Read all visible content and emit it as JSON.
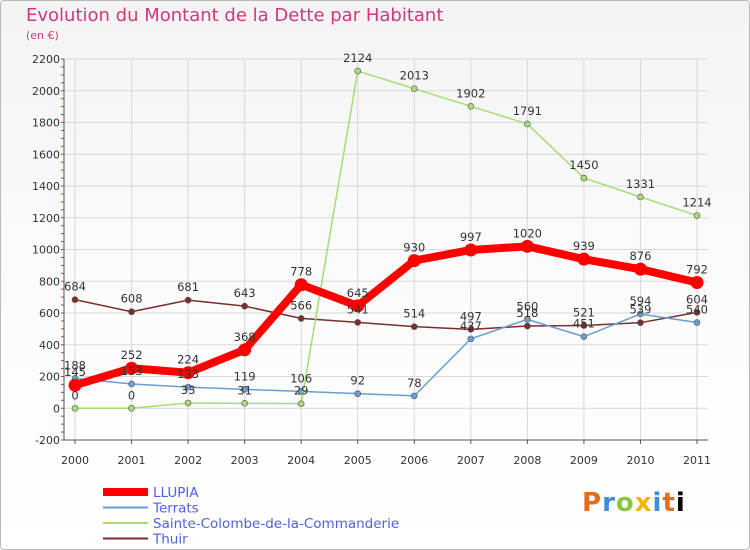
{
  "title": "Evolution du Montant de la Dette par Habitant",
  "subtitle": "(en €)",
  "logo_text": "Proxiti",
  "chart_data": {
    "type": "line",
    "title": "Evolution du Montant de la Dette par Habitant",
    "subtitle": "(en €)",
    "xlabel": "",
    "ylabel": "",
    "x": [
      2000,
      2001,
      2002,
      2003,
      2004,
      2005,
      2006,
      2007,
      2008,
      2009,
      2010,
      2011
    ],
    "ylim": [
      -200,
      2200
    ],
    "yticks": [
      -200,
      0,
      200,
      400,
      600,
      800,
      1000,
      1200,
      1400,
      1600,
      1800,
      2000,
      2200
    ],
    "grid": true,
    "legend_position": "bottom-left",
    "series": [
      {
        "name": "Thuir",
        "color": "#7a2e2e",
        "width": 1.5,
        "values": [
          684,
          608,
          681,
          643,
          566,
          541,
          514,
          497,
          518,
          521,
          539,
          604
        ],
        "labels": [
          "684",
          "608",
          "681",
          "643",
          "566",
          "541",
          "514",
          "497",
          "518",
          "521",
          "539",
          "604"
        ]
      },
      {
        "name": "Terrats",
        "color": "#6a9fce",
        "width": 1.5,
        "values": [
          188,
          153,
          133,
          119,
          106,
          92,
          78,
          437,
          560,
          451,
          594,
          540
        ],
        "labels": [
          "188",
          "153",
          "133",
          "119",
          "106",
          "92",
          "78",
          "437",
          "560",
          "451",
          "594",
          "540"
        ]
      },
      {
        "name": "Sainte-Colombe-de-la-Commanderie",
        "color": "#a6dc74",
        "width": 1.5,
        "values": [
          0,
          0,
          33,
          31,
          29,
          2124,
          2013,
          1902,
          1791,
          1450,
          1331,
          1214
        ],
        "labels": [
          "0",
          "0",
          "33",
          "31",
          "29",
          "2124",
          "2013",
          "1902",
          "1791",
          "1450",
          "1331",
          "1214"
        ]
      },
      {
        "name": "LLUPIA",
        "color": "#ff0000",
        "width": 8,
        "values": [
          145,
          252,
          224,
          368,
          778,
          645,
          930,
          997,
          1020,
          939,
          876,
          792
        ],
        "labels": [
          "145",
          "252",
          "224",
          "368",
          "778",
          "645",
          "930",
          "997",
          "1020",
          "939",
          "876",
          "792"
        ]
      }
    ],
    "legend": [
      "LLUPIA",
      "Terrats",
      "Sainte-Colombe-de-la-Commanderie",
      "Thuir"
    ]
  }
}
